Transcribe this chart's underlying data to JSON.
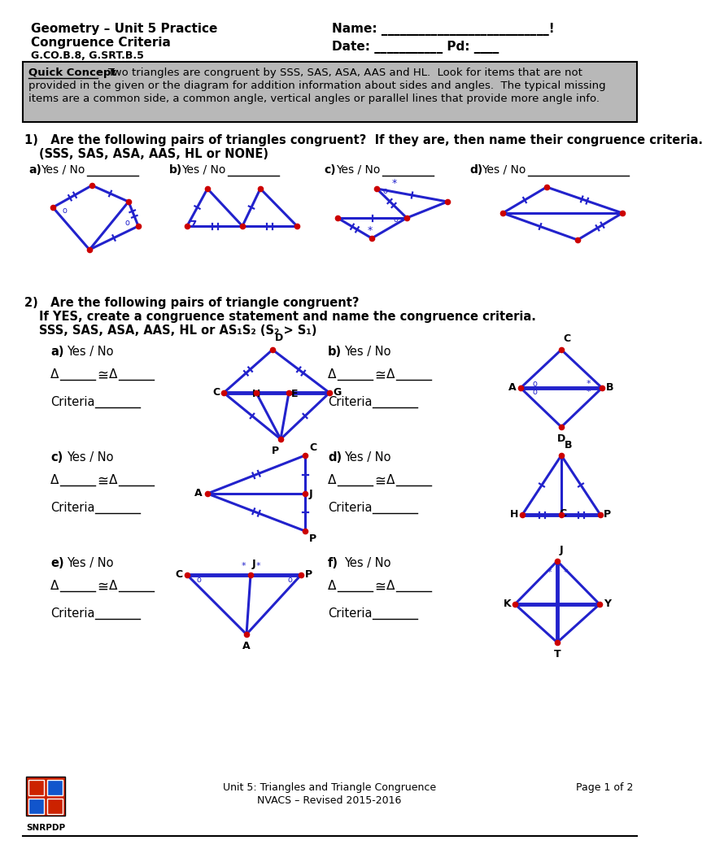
{
  "bg": "#ffffff",
  "blue": "#2222cc",
  "red": "#cc0000",
  "black": "#000000",
  "gray": "#b8b8b8",
  "title1": "Geometry – Unit 5 Practice",
  "title2": "Congruence Criteria",
  "title3": "G.CO.B.8, G.SRT.B.5",
  "name_line": "Name: ___________________________!",
  "date_line": "Date: ___________ Pd: ____",
  "qc_bold": "Quick Concept",
  "qc_rest1": ":  Two triangles are congruent by SSS, SAS, ASA, AAS and HL.  Look for items that are not",
  "qc_line2": "provided in the given or the diagram for addition information about sides and angles.  The typical missing",
  "qc_line3": "items are a common side, a common angle, vertical angles or parallel lines that provide more angle info.",
  "q1_line1": "1)   Are the following pairs of triangles congruent?  If they are, then name their congruence criteria.",
  "q1_line2": "(SSS, SAS, ASA, AAS, HL or NONE)",
  "q2_line1": "2)   Are the following pairs of triangle congruent?",
  "q2_line2": "If YES, create a congruence statement and name the congruence criteria.",
  "q2_line3": "SSS, SAS, ASA, AAS, HL or AS₁S₂ (S₂ > S₁)",
  "footer1": "Unit 5: Triangles and Triangle Congruence",
  "footer2": "NVACS – Revised 2015-2016",
  "footer3": "Page 1 of 2"
}
